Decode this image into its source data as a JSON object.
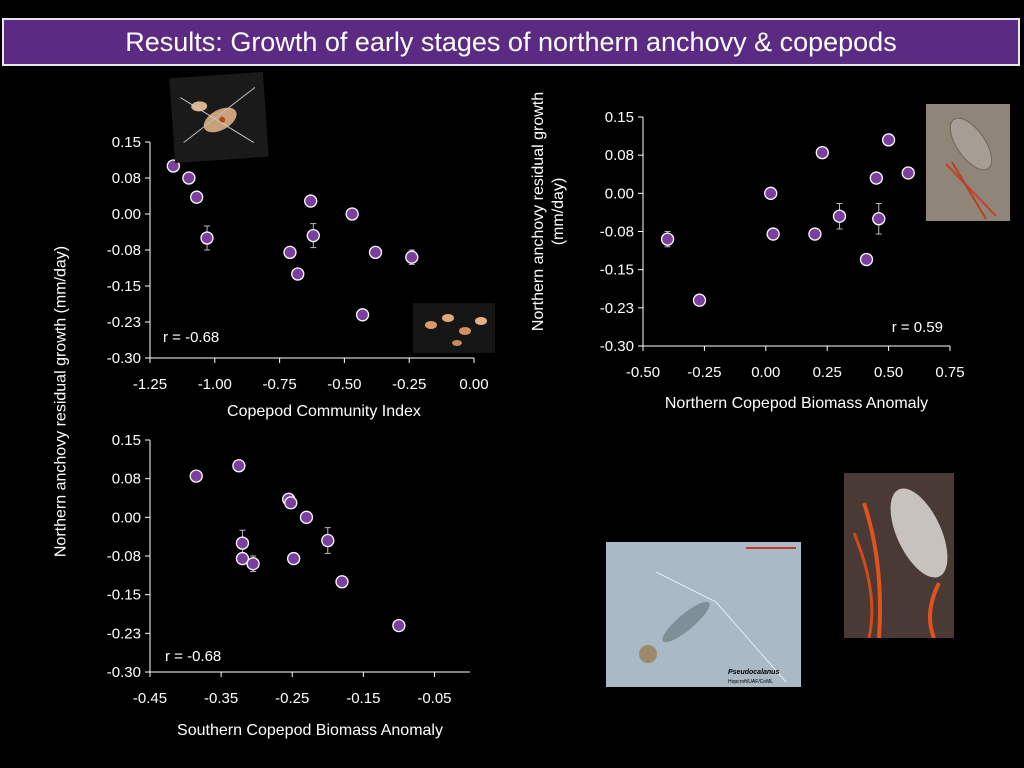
{
  "slide": {
    "title": "Results: Growth of early stages of northern anchovy & copepods"
  },
  "shared_ylabel": "Northern anchovy residual growth (mm/day)",
  "photos": {
    "copepod_top": "copepod-photo",
    "copepods_group": "copepods-group-photo",
    "copepod_right": "copepod-photo",
    "pseudocalanus": "pseudocalanus-micrograph",
    "pseudocalanus_label": "Pseudocalanus",
    "pseudocalanus_credit": "Hopcroft/UAF/CoML",
    "copepod_large": "copepod-closeup-photo"
  },
  "colors": {
    "marker_fill": "#7b3fa0",
    "marker_stroke": "#ffffff",
    "axis": "#ffffff",
    "title_bg": "#5b2a83"
  },
  "chart_data": [
    {
      "type": "scatter",
      "xlabel": "Copepod Community Index",
      "ylabel": "",
      "annotation": "r = -0.68",
      "xlim": [
        -1.25,
        0.0
      ],
      "ylim": [
        -0.3,
        0.15
      ],
      "x_ticks": [
        "-1.25",
        "-1.00",
        "-0.75",
        "-0.50",
        "-0.25",
        "0.00"
      ],
      "x_tick_values": [
        -1.25,
        -1.0,
        -0.75,
        -0.5,
        -0.25,
        0.0
      ],
      "y_ticks": [
        "0.15",
        "0.08",
        "0.00",
        "-0.08",
        "-0.15",
        "-0.23",
        "-0.30"
      ],
      "y_tick_values": [
        0.15,
        0.075,
        0.0,
        -0.075,
        -0.15,
        -0.225,
        -0.3
      ],
      "points": [
        {
          "x": -1.16,
          "y": 0.1
        },
        {
          "x": -1.1,
          "y": 0.075
        },
        {
          "x": -1.07,
          "y": 0.035
        },
        {
          "x": -1.03,
          "y": -0.05,
          "err": 0.025
        },
        {
          "x": -0.71,
          "y": -0.08
        },
        {
          "x": -0.68,
          "y": -0.125
        },
        {
          "x": -0.63,
          "y": 0.027
        },
        {
          "x": -0.62,
          "y": -0.045,
          "err": 0.025
        },
        {
          "x": -0.47,
          "y": 0.0
        },
        {
          "x": -0.43,
          "y": -0.21
        },
        {
          "x": -0.38,
          "y": -0.08
        },
        {
          "x": -0.24,
          "y": -0.09,
          "err": 0.015
        }
      ]
    },
    {
      "type": "scatter",
      "xlabel": "Northern Copepod Biomass Anomaly",
      "ylabel": "Northern anchovy residual growth (mm/day)",
      "annotation": "r = 0.59",
      "xlim": [
        -0.5,
        0.75
      ],
      "ylim": [
        -0.3,
        0.15
      ],
      "x_ticks": [
        "-0.50",
        "-0.25",
        "0.00",
        "0.25",
        "0.50",
        "0.75"
      ],
      "x_tick_values": [
        -0.5,
        -0.25,
        0.0,
        0.25,
        0.5,
        0.75
      ],
      "y_ticks": [
        "0.15",
        "0.08",
        "0.00",
        "-0.08",
        "-0.15",
        "-0.23",
        "-0.30"
      ],
      "y_tick_values": [
        0.15,
        0.075,
        0.0,
        -0.075,
        -0.15,
        -0.225,
        -0.3
      ],
      "points": [
        {
          "x": -0.4,
          "y": -0.09,
          "err": 0.015
        },
        {
          "x": -0.27,
          "y": -0.21
        },
        {
          "x": 0.02,
          "y": 0.0
        },
        {
          "x": 0.03,
          "y": -0.08
        },
        {
          "x": 0.2,
          "y": -0.08
        },
        {
          "x": 0.23,
          "y": 0.08
        },
        {
          "x": 0.3,
          "y": -0.045,
          "err": 0.025
        },
        {
          "x": 0.41,
          "y": -0.13
        },
        {
          "x": 0.45,
          "y": 0.03
        },
        {
          "x": 0.46,
          "y": -0.05,
          "err": 0.03
        },
        {
          "x": 0.5,
          "y": 0.105
        },
        {
          "x": 0.58,
          "y": 0.04
        }
      ]
    },
    {
      "type": "scatter",
      "xlabel": "Southern Copepod Biomass Anomaly",
      "ylabel": "",
      "annotation": "r = -0.68",
      "xlim": [
        -0.45,
        0.0
      ],
      "ylim": [
        -0.3,
        0.15
      ],
      "x_ticks": [
        "-0.45",
        "-0.35",
        "-0.25",
        "-0.15",
        "-0.05"
      ],
      "x_tick_values": [
        -0.45,
        -0.35,
        -0.25,
        -0.15,
        -0.05
      ],
      "y_ticks": [
        "0.15",
        "0.08",
        "0.00",
        "-0.08",
        "-0.15",
        "-0.23",
        "-0.30"
      ],
      "y_tick_values": [
        0.15,
        0.075,
        0.0,
        -0.075,
        -0.15,
        -0.225,
        -0.3
      ],
      "points": [
        {
          "x": -0.385,
          "y": 0.08
        },
        {
          "x": -0.325,
          "y": 0.1
        },
        {
          "x": -0.32,
          "y": -0.05,
          "err": 0.025
        },
        {
          "x": -0.32,
          "y": -0.08
        },
        {
          "x": -0.305,
          "y": -0.09,
          "err": 0.015
        },
        {
          "x": -0.255,
          "y": 0.035
        },
        {
          "x": -0.252,
          "y": 0.028
        },
        {
          "x": -0.248,
          "y": -0.08
        },
        {
          "x": -0.23,
          "y": 0.0
        },
        {
          "x": -0.2,
          "y": -0.045,
          "err": 0.025
        },
        {
          "x": -0.18,
          "y": -0.125
        },
        {
          "x": -0.1,
          "y": -0.21
        }
      ]
    }
  ]
}
